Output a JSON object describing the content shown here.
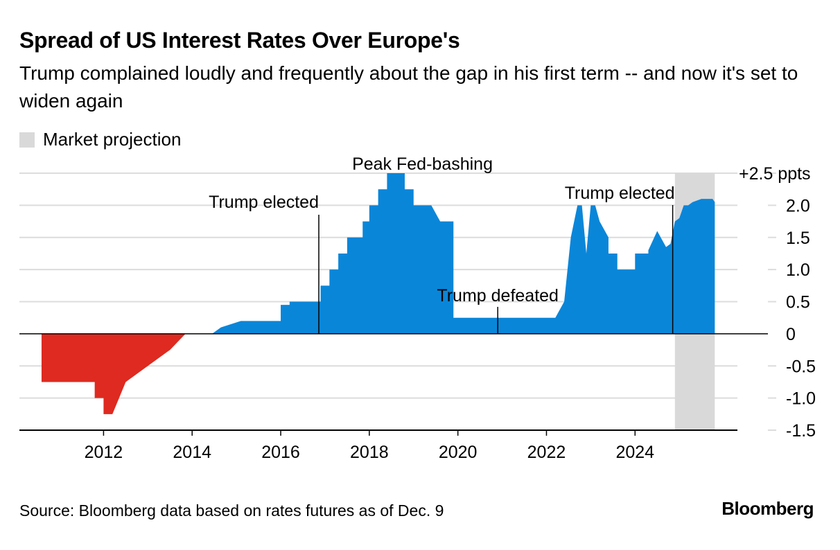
{
  "header": {
    "title": "Spread of US Interest Rates Over Europe's",
    "subtitle": "Trump complained loudly and frequently about the gap in his first term -- and now it's set to widen again"
  },
  "legend": {
    "label": "Market projection",
    "color": "#d9d9d9"
  },
  "footer": {
    "source": "Source: Bloomberg data based on rates futures as of Dec. 9",
    "brand": "Bloomberg"
  },
  "colors": {
    "positive": "#0a86d9",
    "negative": "#de2a20",
    "projection": "#d9d9d9",
    "grid": "#dcdcdc",
    "axis": "#000000"
  },
  "chart_data": {
    "type": "area",
    "title": "Spread of US Interest Rates Over Europe's",
    "xlabel": "",
    "ylabel": "",
    "xlim": [
      2010.1,
      2027.0
    ],
    "ylim": [
      -1.5,
      2.5
    ],
    "y_ticks": [
      {
        "value": 2.5,
        "label": "+2.5 ppts"
      },
      {
        "value": 2.0,
        "label": "2.0"
      },
      {
        "value": 1.5,
        "label": "1.5"
      },
      {
        "value": 1.0,
        "label": "1.0"
      },
      {
        "value": 0.5,
        "label": "0.5"
      },
      {
        "value": 0,
        "label": "0"
      },
      {
        "value": -0.5,
        "label": "-0.5"
      },
      {
        "value": -1.0,
        "label": "-1.0"
      },
      {
        "value": -1.5,
        "label": "-1.5"
      }
    ],
    "x_ticks": [
      {
        "value": 2012,
        "label": "2012"
      },
      {
        "value": 2014,
        "label": "2014"
      },
      {
        "value": 2016,
        "label": "2016"
      },
      {
        "value": 2018,
        "label": "2018"
      },
      {
        "value": 2020,
        "label": "2020"
      },
      {
        "value": 2022,
        "label": "2022"
      },
      {
        "value": 2024,
        "label": "2024"
      }
    ],
    "grid": true,
    "legend_position": "top-left",
    "projection_range": [
      2024.9,
      2025.8
    ],
    "series": [
      {
        "x": [
          2010.6,
          2010.6,
          2011.8,
          2011.8,
          2012.0,
          2012.0,
          2012.2,
          2012.5,
          2012.5,
          2013.0,
          2013.0,
          2013.5,
          2013.5,
          2013.85,
          2013.85,
          2014.05,
          2014.05,
          2014.45,
          2014.45,
          2014.65,
          2014.65,
          2015.1,
          2015.5,
          2016.0,
          2016.0,
          2016.2,
          2016.2,
          2016.9,
          2016.9,
          2017.1,
          2017.1,
          2017.3,
          2017.3,
          2017.5,
          2017.5,
          2017.85,
          2017.85,
          2018.0,
          2018.0,
          2018.2,
          2018.2,
          2018.4,
          2018.4,
          2018.6,
          2018.6,
          2018.8,
          2018.8,
          2019.0,
          2019.0,
          2019.4,
          2019.6,
          2019.9,
          2019.9,
          2020.2,
          2020.3,
          2021.0,
          2021.5,
          2022.0,
          2022.2,
          2022.4,
          2022.55,
          2022.7,
          2022.8,
          2022.9,
          2023.0,
          2023.1,
          2023.2,
          2023.4,
          2023.4,
          2023.6,
          2023.6,
          2023.8,
          2023.8,
          2024.0,
          2024.0,
          2024.3,
          2024.3,
          2024.5,
          2024.7,
          2024.8,
          2024.9,
          2025.0,
          2025.1,
          2025.2,
          2025.3,
          2025.5,
          2025.7,
          2025.75,
          2025.8,
          2025.8
        ],
        "y": [
          0,
          -0.75,
          -0.75,
          -1.0,
          -1.0,
          -1.25,
          -1.25,
          -0.75,
          -0.75,
          -0.5,
          -0.5,
          -0.25,
          -0.25,
          0,
          0,
          0,
          0,
          0,
          0,
          0.1,
          0.1,
          0.2,
          0.2,
          0.2,
          0.45,
          0.45,
          0.5,
          0.5,
          0.75,
          0.75,
          1.0,
          1.0,
          1.25,
          1.25,
          1.5,
          1.5,
          1.75,
          1.75,
          2.0,
          2.0,
          2.25,
          2.25,
          2.5,
          2.5,
          2.5,
          2.5,
          2.25,
          2.25,
          2.0,
          2.0,
          1.75,
          1.75,
          0.25,
          0.25,
          0.25,
          0.25,
          0.25,
          0.25,
          0.25,
          0.5,
          1.5,
          2.0,
          2.0,
          1.25,
          2.0,
          2.0,
          1.75,
          1.5,
          1.25,
          1.25,
          1.0,
          1.0,
          1.0,
          1.0,
          1.25,
          1.25,
          1.3,
          1.6,
          1.35,
          1.4,
          1.75,
          1.8,
          2.0,
          2.0,
          2.05,
          2.1,
          2.1,
          2.1,
          2.05,
          0
        ]
      }
    ],
    "annotations": [
      {
        "text": "Trump elected",
        "x": 2016.86,
        "y": 2.0
      },
      {
        "text": "Peak Fed-bashing",
        "x": 2019.2,
        "y": 2.5
      },
      {
        "text": "Trump defeated",
        "x": 2020.9,
        "y": 0.1
      },
      {
        "text": "Trump elected",
        "x": 2024.85,
        "y": 2.1
      }
    ]
  }
}
